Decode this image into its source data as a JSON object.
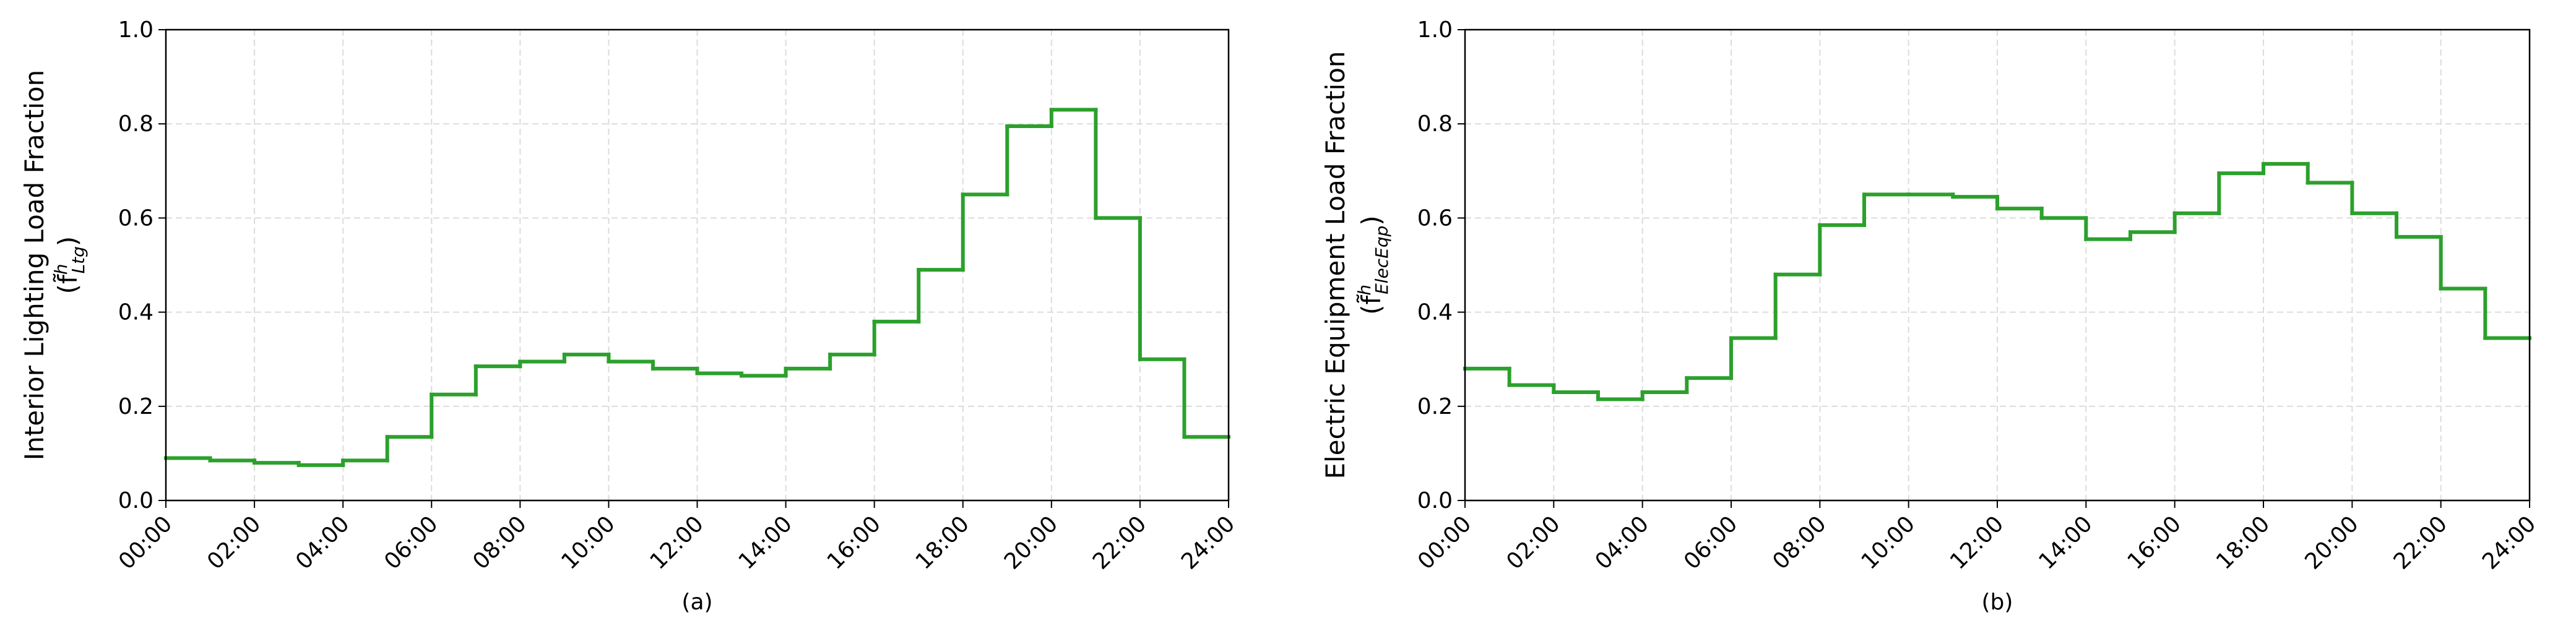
{
  "chart_data": [
    {
      "type": "step",
      "xlabel": "(a)",
      "ylabel": "Interior Lighting Load Fraction",
      "ylabel_math": [
        "(f̃",
        "h",
        "Ltg",
        ")"
      ],
      "x": [
        0,
        1,
        2,
        3,
        4,
        5,
        6,
        7,
        8,
        9,
        10,
        11,
        12,
        13,
        14,
        15,
        16,
        17,
        18,
        19,
        20,
        21,
        22,
        23
      ],
      "values": [
        0.09,
        0.085,
        0.08,
        0.075,
        0.085,
        0.135,
        0.225,
        0.285,
        0.295,
        0.31,
        0.295,
        0.28,
        0.27,
        0.265,
        0.28,
        0.31,
        0.38,
        0.49,
        0.65,
        0.795,
        0.83,
        0.6,
        0.3,
        0.135
      ],
      "color": "#2ca02c",
      "grid": true,
      "xlim": [
        0,
        24
      ],
      "xticks": [
        {
          "value": 0,
          "label": "00:00"
        },
        {
          "value": 2,
          "label": "02:00"
        },
        {
          "value": 4,
          "label": "04:00"
        },
        {
          "value": 6,
          "label": "06:00"
        },
        {
          "value": 8,
          "label": "08:00"
        },
        {
          "value": 10,
          "label": "10:00"
        },
        {
          "value": 12,
          "label": "12:00"
        },
        {
          "value": 14,
          "label": "14:00"
        },
        {
          "value": 16,
          "label": "16:00"
        },
        {
          "value": 18,
          "label": "18:00"
        },
        {
          "value": 20,
          "label": "20:00"
        },
        {
          "value": 22,
          "label": "22:00"
        },
        {
          "value": 24,
          "label": "24:00"
        }
      ],
      "ylim": [
        0,
        1
      ],
      "yticks": [
        {
          "value": 0,
          "label": "0.0"
        },
        0.2,
        0.4,
        0.6,
        0.8,
        {
          "value": 1,
          "label": "1.0"
        }
      ]
    },
    {
      "type": "step",
      "xlabel": "(b)",
      "ylabel": "Electric Equipment Load Fraction",
      "ylabel_math": [
        "(f̃",
        "h",
        "ElecEqp",
        ")"
      ],
      "x": [
        0,
        1,
        2,
        3,
        4,
        5,
        6,
        7,
        8,
        9,
        10,
        11,
        12,
        13,
        14,
        15,
        16,
        17,
        18,
        19,
        20,
        21,
        22,
        23
      ],
      "values": [
        0.28,
        0.245,
        0.23,
        0.215,
        0.23,
        0.26,
        0.345,
        0.48,
        0.585,
        0.65,
        0.65,
        0.645,
        0.62,
        0.6,
        0.555,
        0.57,
        0.61,
        0.695,
        0.715,
        0.675,
        0.61,
        0.56,
        0.45,
        0.345
      ],
      "color": "#2ca02c",
      "grid": true,
      "xlim": [
        0,
        24
      ],
      "xticks": [
        {
          "value": 0,
          "label": "00:00"
        },
        {
          "value": 2,
          "label": "02:00"
        },
        {
          "value": 4,
          "label": "04:00"
        },
        {
          "value": 6,
          "label": "06:00"
        },
        {
          "value": 8,
          "label": "08:00"
        },
        {
          "value": 10,
          "label": "10:00"
        },
        {
          "value": 12,
          "label": "12:00"
        },
        {
          "value": 14,
          "label": "14:00"
        },
        {
          "value": 16,
          "label": "16:00"
        },
        {
          "value": 18,
          "label": "18:00"
        },
        {
          "value": 20,
          "label": "20:00"
        },
        {
          "value": 22,
          "label": "22:00"
        },
        {
          "value": 24,
          "label": "24:00"
        }
      ],
      "ylim": [
        0,
        1
      ],
      "yticks": [
        {
          "value": 0,
          "label": "0.0"
        },
        0.2,
        0.4,
        0.6,
        0.8,
        {
          "value": 1,
          "label": "1.0"
        }
      ]
    }
  ]
}
